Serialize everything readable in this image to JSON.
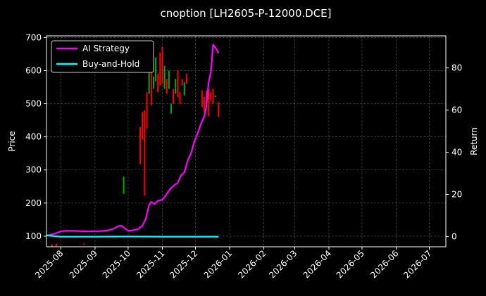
{
  "chart_data": {
    "type": "line",
    "title": "cnoption [LH2605-P-12000.DCE]",
    "xlabel": "",
    "ylabel_left": "Price",
    "ylabel_right": "Return",
    "x_ticks": [
      "2025-08",
      "2025-09",
      "2025-10",
      "2025-11",
      "2025-12",
      "2026-01",
      "2026-02",
      "2026-03",
      "2026-04",
      "2026-05",
      "2026-06",
      "2026-07"
    ],
    "x_range": [
      "2025-07-19",
      "2026-07-16"
    ],
    "y_left_ticks": [
      100,
      200,
      300,
      400,
      500,
      600,
      700
    ],
    "y_left_range": [
      68,
      705
    ],
    "y_right_ticks": [
      0,
      20,
      40,
      60,
      80
    ],
    "y_right_range": [
      -4.8,
      95.2
    ],
    "grid": true,
    "legend_position": "top-left",
    "colors": {
      "background": "#000000",
      "ai_strategy": "#ff00ff",
      "buy_and_hold": "#00ffff",
      "candle_up": "#00aa00",
      "candle_down": "#ff0000"
    },
    "series": [
      {
        "name": "AI Strategy",
        "axis": "right",
        "points": [
          [
            "2025-07-19",
            0.5
          ],
          [
            "2025-07-25",
            1.2
          ],
          [
            "2025-08-01",
            2.5
          ],
          [
            "2025-08-06",
            2.8
          ],
          [
            "2025-08-15",
            2.7
          ],
          [
            "2025-08-25",
            2.5
          ],
          [
            "2025-09-05",
            2.6
          ],
          [
            "2025-09-12",
            2.9
          ],
          [
            "2025-09-18",
            3.8
          ],
          [
            "2025-09-22",
            5.0
          ],
          [
            "2025-09-25",
            5.2
          ],
          [
            "2025-09-28",
            4.0
          ],
          [
            "2025-10-01",
            2.8
          ],
          [
            "2025-10-05",
            3.0
          ],
          [
            "2025-10-10",
            3.6
          ],
          [
            "2025-10-14",
            5.2
          ],
          [
            "2025-10-17",
            8.5
          ],
          [
            "2025-10-20",
            15.0
          ],
          [
            "2025-10-22",
            16.5
          ],
          [
            "2025-10-25",
            15.5
          ],
          [
            "2025-10-28",
            17.0
          ],
          [
            "2025-11-01",
            17.5
          ],
          [
            "2025-11-04",
            19.5
          ],
          [
            "2025-11-08",
            22.5
          ],
          [
            "2025-11-12",
            24.5
          ],
          [
            "2025-11-15",
            25.5
          ],
          [
            "2025-11-18",
            29.0
          ],
          [
            "2025-11-21",
            30.5
          ],
          [
            "2025-11-24",
            36.0
          ],
          [
            "2025-11-27",
            39.5
          ],
          [
            "2025-11-30",
            45.0
          ],
          [
            "2025-12-03",
            49.0
          ],
          [
            "2025-12-06",
            53.5
          ],
          [
            "2025-12-09",
            57.0
          ],
          [
            "2025-12-11",
            62.0
          ],
          [
            "2025-12-13",
            73.0
          ],
          [
            "2025-12-15",
            78.0
          ],
          [
            "2025-12-17",
            91.0
          ],
          [
            "2025-12-20",
            89.0
          ],
          [
            "2025-12-22",
            87.0
          ]
        ]
      },
      {
        "name": "Buy-and-Hold",
        "axis": "right",
        "points": [
          [
            "2025-07-19",
            0.6
          ],
          [
            "2025-07-25",
            0.3
          ],
          [
            "2025-08-01",
            0.0
          ],
          [
            "2025-09-01",
            0.0
          ],
          [
            "2025-10-01",
            0.05
          ],
          [
            "2025-11-01",
            0.0
          ],
          [
            "2025-12-01",
            0.0
          ],
          [
            "2025-12-22",
            0.0
          ]
        ]
      }
    ],
    "candles": [
      {
        "date": "2025-07-24",
        "open": 75,
        "close": 68,
        "dir": "down"
      },
      {
        "date": "2025-07-28",
        "open": 77,
        "close": 70,
        "dir": "down"
      },
      {
        "date": "2025-08-22",
        "open": 79,
        "close": 75,
        "dir": "down"
      },
      {
        "date": "2025-09-27",
        "open": 228,
        "close": 280,
        "dir": "up"
      },
      {
        "date": "2025-10-12",
        "open": 430,
        "close": 318,
        "dir": "down"
      },
      {
        "date": "2025-10-14",
        "open": 475,
        "close": 392,
        "dir": "down"
      },
      {
        "date": "2025-10-16",
        "open": 480,
        "close": 222,
        "dir": "down"
      },
      {
        "date": "2025-10-18",
        "open": 535,
        "close": 425,
        "dir": "down"
      },
      {
        "date": "2025-10-20",
        "open": 530,
        "close": 612,
        "dir": "up"
      },
      {
        "date": "2025-10-22",
        "open": 600,
        "close": 495,
        "dir": "down"
      },
      {
        "date": "2025-10-24",
        "open": 545,
        "close": 582,
        "dir": "up"
      },
      {
        "date": "2025-10-26",
        "open": 568,
        "close": 640,
        "dir": "up"
      },
      {
        "date": "2025-10-28",
        "open": 590,
        "close": 535,
        "dir": "down"
      },
      {
        "date": "2025-10-30",
        "open": 655,
        "close": 555,
        "dir": "down"
      },
      {
        "date": "2025-11-01",
        "open": 672,
        "close": 560,
        "dir": "down"
      },
      {
        "date": "2025-11-03",
        "open": 545,
        "close": 615,
        "dir": "up"
      },
      {
        "date": "2025-11-05",
        "open": 575,
        "close": 530,
        "dir": "down"
      },
      {
        "date": "2025-11-07",
        "open": 545,
        "close": 600,
        "dir": "up"
      },
      {
        "date": "2025-11-09",
        "open": 500,
        "close": 470,
        "dir": "up"
      },
      {
        "date": "2025-11-11",
        "open": 545,
        "close": 500,
        "dir": "down"
      },
      {
        "date": "2025-11-13",
        "open": 530,
        "close": 575,
        "dir": "up"
      },
      {
        "date": "2025-11-15",
        "open": 600,
        "close": 520,
        "dir": "down"
      },
      {
        "date": "2025-11-17",
        "open": 535,
        "close": 500,
        "dir": "down"
      },
      {
        "date": "2025-11-19",
        "open": 575,
        "close": 555,
        "dir": "down"
      },
      {
        "date": "2025-11-21",
        "open": 525,
        "close": 565,
        "dir": "up"
      },
      {
        "date": "2025-11-23",
        "open": 560,
        "close": 590,
        "dir": "down"
      },
      {
        "date": "2025-12-07",
        "open": 540,
        "close": 490,
        "dir": "down"
      },
      {
        "date": "2025-12-09",
        "open": 520,
        "close": 475,
        "dir": "down"
      },
      {
        "date": "2025-12-11",
        "open": 500,
        "close": 540,
        "dir": "down"
      },
      {
        "date": "2025-12-13",
        "open": 545,
        "close": 462,
        "dir": "down"
      },
      {
        "date": "2025-12-15",
        "open": 510,
        "close": 535,
        "dir": "down"
      },
      {
        "date": "2025-12-17",
        "open": 545,
        "close": 500,
        "dir": "down"
      },
      {
        "date": "2025-12-19",
        "open": 520,
        "close": 525,
        "dir": "up"
      },
      {
        "date": "2025-12-22",
        "open": 505,
        "close": 460,
        "dir": "down"
      }
    ]
  }
}
